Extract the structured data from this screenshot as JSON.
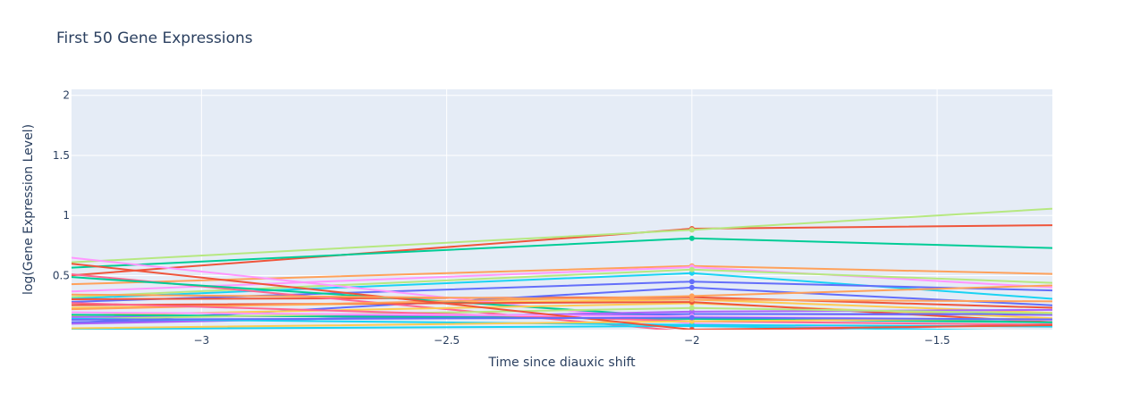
{
  "chart_data": {
    "type": "line",
    "title": "First 50 Gene Expressions",
    "xlabel": "Time since diauxic shift",
    "ylabel": "log(Gene Expression Level)",
    "xlim": [
      -3.265,
      -1.265
    ],
    "ylim": [
      0.05,
      2.05
    ],
    "x_ticks": [
      -3,
      -2.5,
      -2,
      -1.5
    ],
    "x_tick_labels": [
      "−3",
      "−2.5",
      "−2",
      "−1.5"
    ],
    "y_ticks": [
      0.5,
      1,
      1.5,
      2
    ],
    "y_tick_labels": [
      "0.5",
      "1",
      "1.5",
      "2"
    ],
    "grid": true,
    "plot_background": "#e5ecf6",
    "series": [
      {
        "color": "#ef553b",
        "x": [
          -3.5,
          -2,
          -1
        ],
        "y": [
          0.43,
          0.89,
          0.93
        ]
      },
      {
        "color": "#b6e880",
        "x": [
          -3.5,
          -2,
          -1
        ],
        "y": [
          0.56,
          0.88,
          1.12
        ]
      },
      {
        "color": "#00cc96",
        "x": [
          -3.5,
          -2,
          -1
        ],
        "y": [
          0.52,
          0.81,
          0.7
        ]
      },
      {
        "color": "#ffa15a",
        "x": [
          -3.5,
          -2,
          -1
        ],
        "y": [
          0.4,
          0.58,
          0.49
        ]
      },
      {
        "color": "#ff97ff",
        "x": [
          -3.5,
          -2,
          -1
        ],
        "y": [
          0.33,
          0.57,
          0.34
        ]
      },
      {
        "color": "#19d3f3",
        "x": [
          -3.5,
          -2,
          -1
        ],
        "y": [
          0.27,
          0.52,
          0.23
        ]
      },
      {
        "color": "#636efa",
        "x": [
          -3.5,
          -2,
          -1
        ],
        "y": [
          0.25,
          0.45,
          0.35
        ]
      },
      {
        "color": "#b6e880",
        "x": [
          -3.5,
          -2,
          -1
        ],
        "y": [
          0.28,
          0.55,
          0.4
        ]
      },
      {
        "color": "#fecb52",
        "x": [
          -3.5,
          -2,
          -1
        ],
        "y": [
          0.22,
          0.3,
          0.15
        ]
      },
      {
        "color": "#ef553b",
        "x": [
          -3.5,
          -2,
          -1
        ],
        "y": [
          0.3,
          0.32,
          0.2
        ]
      },
      {
        "color": "#636efa",
        "x": [
          -3.5,
          -2,
          -1
        ],
        "y": [
          0.05,
          0.4,
          0.2
        ]
      },
      {
        "color": "#ab63fa",
        "x": [
          -3.5,
          -2,
          -1
        ],
        "y": [
          0.15,
          0.18,
          0.17
        ]
      },
      {
        "color": "#ff6692",
        "x": [
          -3.5,
          -2,
          -1
        ],
        "y": [
          0.6,
          0.03,
          0.12
        ]
      },
      {
        "color": "#ff97ff",
        "x": [
          -3.5,
          -2,
          -1
        ],
        "y": [
          0.75,
          0.1,
          0.0
        ]
      },
      {
        "color": "#00cc96",
        "x": [
          -3.5,
          -2,
          -1
        ],
        "y": [
          0.55,
          0.15,
          0.1
        ]
      },
      {
        "color": "#19d3f3",
        "x": [
          -3.5,
          -2,
          -1
        ],
        "y": [
          0.05,
          0.08,
          0.02
        ]
      },
      {
        "color": "#fecb52",
        "x": [
          -3.5,
          -2,
          -1
        ],
        "y": [
          0.15,
          0.27,
          0.1
        ]
      },
      {
        "color": "#ef553b",
        "x": [
          -3.5,
          -2,
          -1
        ],
        "y": [
          0.25,
          0.28,
          0.05
        ]
      },
      {
        "color": "#636efa",
        "x": [
          -3.5,
          -2,
          -1
        ],
        "y": [
          0.1,
          0.18,
          0.18
        ]
      },
      {
        "color": "#ab63fa",
        "x": [
          -3.5,
          -2,
          -1
        ],
        "y": [
          0.08,
          0.2,
          0.22
        ]
      },
      {
        "color": "#ffa15a",
        "x": [
          -3.5,
          -2,
          -1
        ],
        "y": [
          0.2,
          0.33,
          0.45
        ]
      },
      {
        "color": "#00cc96",
        "x": [
          -3.5,
          -2,
          -1
        ],
        "y": [
          0.18,
          0.14,
          0.1
        ]
      },
      {
        "color": "#b6e880",
        "x": [
          -3.5,
          -2,
          -1
        ],
        "y": [
          0.12,
          0.23,
          0.17
        ]
      },
      {
        "color": "#ff6692",
        "x": [
          -3.5,
          -2,
          -1
        ],
        "y": [
          0.3,
          0.12,
          0.08
        ]
      },
      {
        "color": "#19d3f3",
        "x": [
          -3.5,
          -2,
          -1
        ],
        "y": [
          0.15,
          0.09,
          0.07
        ]
      },
      {
        "color": "#ff97ff",
        "x": [
          -3.5,
          -2,
          -1
        ],
        "y": [
          0.2,
          0.16,
          0.12
        ]
      },
      {
        "color": "#fecb52",
        "x": [
          -3.5,
          -2,
          -1
        ],
        "y": [
          0.05,
          0.12,
          0.15
        ]
      },
      {
        "color": "#ef553b",
        "x": [
          -3.5,
          -2,
          -1
        ],
        "y": [
          0.7,
          0.05,
          0.1
        ]
      },
      {
        "color": "#ffa15a",
        "x": [
          -3.5,
          -2,
          -1
        ],
        "y": [
          0.35,
          0.3,
          0.28
        ]
      },
      {
        "color": "#636efa",
        "x": [
          -3.5,
          -2,
          -1
        ],
        "y": [
          0.13,
          0.15,
          0.13
        ]
      }
    ]
  }
}
